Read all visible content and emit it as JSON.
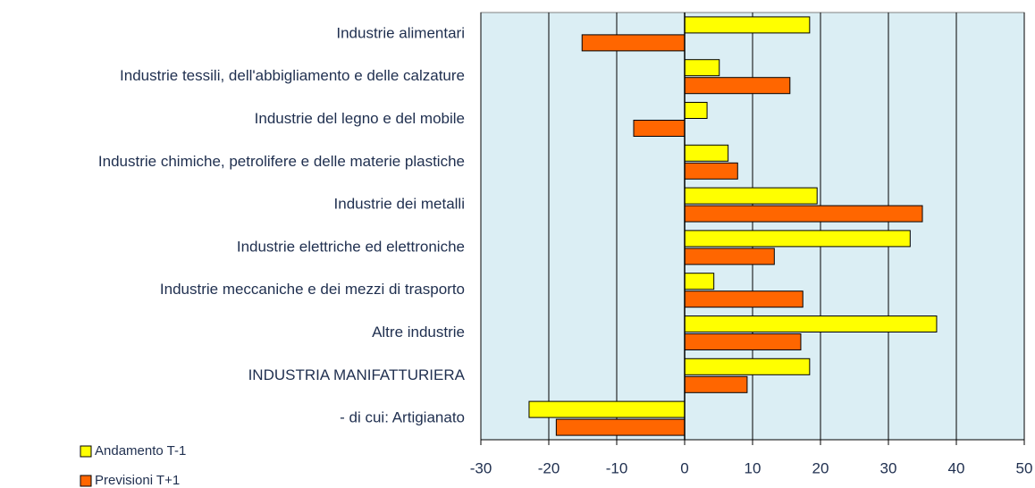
{
  "chart_data": {
    "type": "bar",
    "orientation": "horizontal",
    "categories": [
      "Industrie alimentari",
      "Industrie tessili, dell'abbigliamento e delle calzature",
      "Industrie del legno e del mobile",
      "Industrie chimiche, petrolifere e delle materie plastiche",
      "Industrie dei metalli",
      "Industrie elettriche ed elettroniche",
      "Industrie meccaniche e dei mezzi di trasporto",
      "Altre industrie",
      "INDUSTRIA MANIFATTURIERA",
      "- di cui: Artigianato"
    ],
    "series": [
      {
        "name": "Andamento T-1",
        "color": "#ffff00",
        "values": [
          18.4,
          5.1,
          3.3,
          6.4,
          19.5,
          33.2,
          4.3,
          37.1,
          18.4,
          -22.9
        ]
      },
      {
        "name": "Previsioni T+1",
        "color": "#ff6600",
        "values": [
          -15.1,
          15.5,
          -7.5,
          7.8,
          35.0,
          13.2,
          17.4,
          17.1,
          9.2,
          -18.9
        ]
      }
    ],
    "xlim": [
      -30,
      50
    ],
    "xticks": [
      -30,
      -20,
      -10,
      0,
      10,
      20,
      30,
      40,
      50
    ],
    "grid": true,
    "legend": "bottom-left"
  }
}
